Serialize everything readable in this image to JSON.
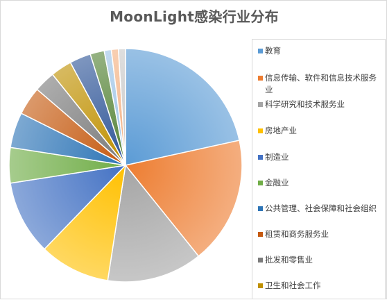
{
  "chart_data": {
    "type": "pie",
    "title": "MoonLight感染行业分布",
    "legend_position": "right",
    "categories": [
      "教育",
      "信息传输、软件和信息技术服务业",
      "科学研究和技术服务业",
      "房地产业",
      "制造业",
      "金融业",
      "公共管理、社会保障和社会组织",
      "租赁和商务服务业",
      "批发和零售业",
      "卫生和社会工作",
      "",
      "",
      "",
      "",
      ""
    ],
    "values": [
      22,
      18,
      13.5,
      10,
      10.5,
      5,
      5,
      4,
      3,
      3,
      3,
      2,
      1,
      1,
      1
    ],
    "colors": [
      "#5b9bd5",
      "#ed7d31",
      "#a5a5a5",
      "#ffc000",
      "#4472c4",
      "#70ad47",
      "#2e75b6",
      "#c55a11",
      "#7b7b7b",
      "#bf9000",
      "#2f5597",
      "#548235",
      "#9dc3e6",
      "#f4b183",
      "#c9c9c9"
    ]
  }
}
